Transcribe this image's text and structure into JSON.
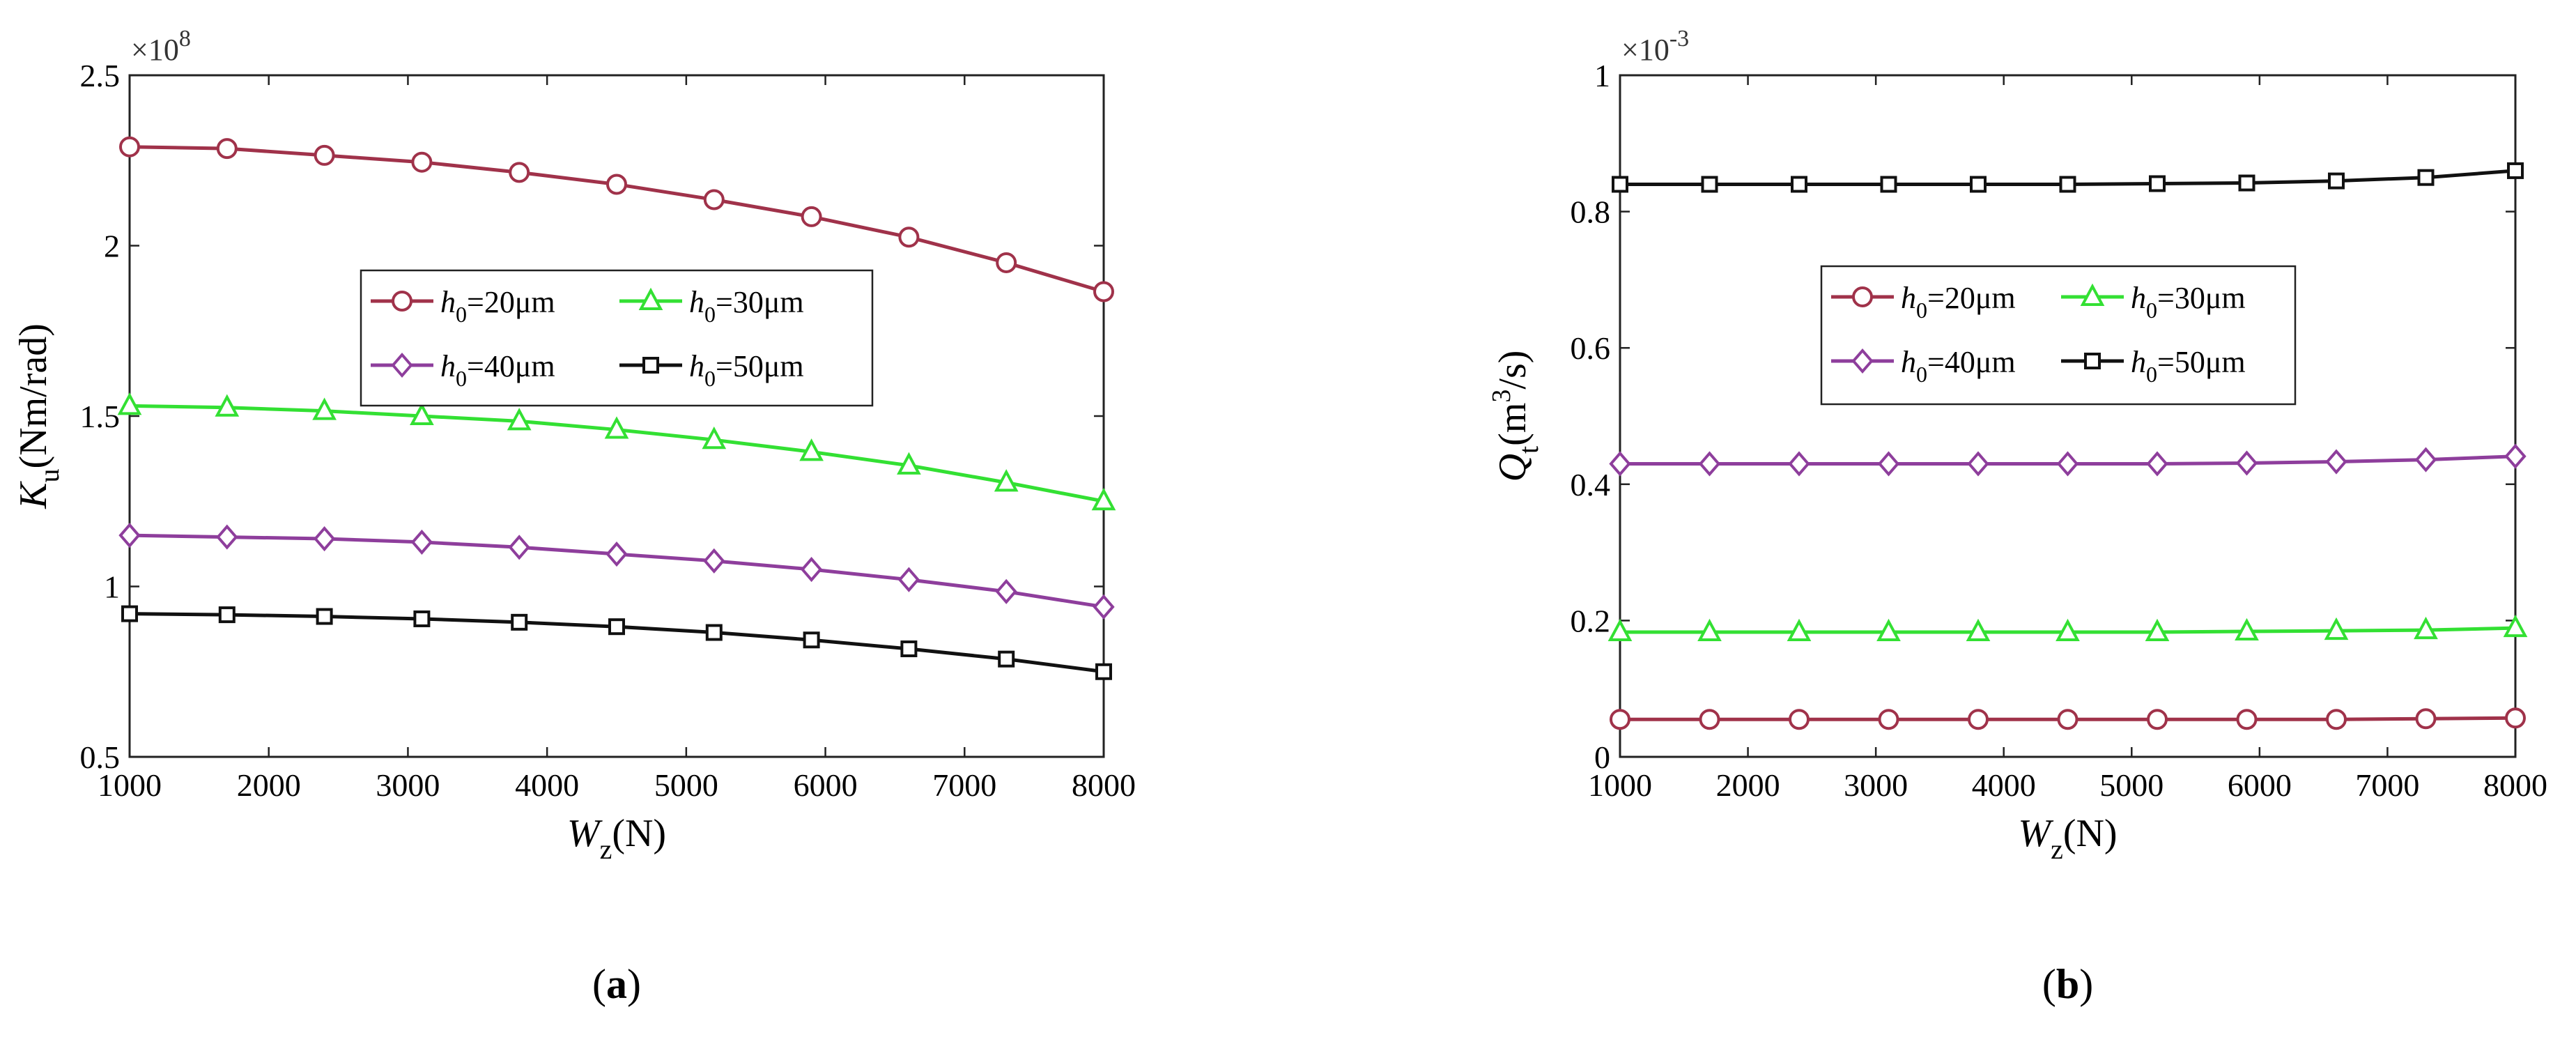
{
  "chart_data": [
    {
      "id": "a",
      "type": "line",
      "caption": "a",
      "x": [
        1000,
        1700,
        2400,
        3100,
        3800,
        4500,
        5200,
        5900,
        6600,
        7300,
        8000
      ],
      "xlim": [
        1000,
        8000
      ],
      "xticks": [
        1000,
        2000,
        3000,
        4000,
        5000,
        6000,
        7000,
        8000
      ],
      "xlabel": {
        "main": "W",
        "sub": "z",
        "unit": "(N)"
      },
      "ylim": [
        0.5,
        2.5
      ],
      "yticks": [
        0.5,
        1,
        1.5,
        2,
        2.5
      ],
      "ytick_labels": [
        "0.5",
        "1",
        "1.5",
        "2",
        "2.5"
      ],
      "ylabel": {
        "main": "K",
        "sub": "u",
        "unit": "(Nm/rad)"
      },
      "multiplier": {
        "base": "×10",
        "exp": "8"
      },
      "legend_position": "center-right",
      "series": [
        {
          "name": "20μm",
          "marker": "circle",
          "color": "#a0324a",
          "values": [
            2.29,
            2.285,
            2.265,
            2.245,
            2.215,
            2.18,
            2.135,
            2.085,
            2.025,
            1.95,
            1.865
          ]
        },
        {
          "name": "30μm",
          "marker": "triangle",
          "color": "#33e033",
          "values": [
            1.53,
            1.525,
            1.515,
            1.5,
            1.485,
            1.46,
            1.43,
            1.395,
            1.355,
            1.305,
            1.25
          ]
        },
        {
          "name": "40μm",
          "marker": "diamond",
          "color": "#8e3e9c",
          "values": [
            1.15,
            1.145,
            1.14,
            1.13,
            1.115,
            1.095,
            1.075,
            1.05,
            1.02,
            0.985,
            0.94
          ]
        },
        {
          "name": "50μm",
          "marker": "square",
          "color": "#111111",
          "values": [
            0.92,
            0.917,
            0.912,
            0.905,
            0.895,
            0.882,
            0.865,
            0.843,
            0.817,
            0.787,
            0.75
          ]
        }
      ]
    },
    {
      "id": "b",
      "type": "line",
      "caption": "b",
      "x": [
        1000,
        1700,
        2400,
        3100,
        3800,
        4500,
        5200,
        5900,
        6600,
        7300,
        8000
      ],
      "xlim": [
        1000,
        8000
      ],
      "xticks": [
        1000,
        2000,
        3000,
        4000,
        5000,
        6000,
        7000,
        8000
      ],
      "xlabel": {
        "main": "W",
        "sub": "z",
        "unit": "(N)"
      },
      "ylim": [
        0,
        1
      ],
      "yticks": [
        0,
        0.2,
        0.4,
        0.6,
        0.8,
        1
      ],
      "ytick_labels": [
        "0",
        "0.2",
        "0.4",
        "0.6",
        "0.8",
        "1"
      ],
      "ylabel": {
        "main": "Q",
        "sub": "t",
        "unit_pre": "(m",
        "sup": "3",
        "unit_post": "/s)"
      },
      "multiplier": {
        "base": "×10",
        "exp": "-3"
      },
      "legend_position": "top-center",
      "series": [
        {
          "name": "20μm",
          "marker": "circle",
          "color": "#a0324a",
          "values": [
            0.055,
            0.055,
            0.055,
            0.055,
            0.055,
            0.055,
            0.055,
            0.055,
            0.055,
            0.056,
            0.057
          ]
        },
        {
          "name": "30μm",
          "marker": "triangle",
          "color": "#33e033",
          "values": [
            0.183,
            0.183,
            0.183,
            0.183,
            0.183,
            0.183,
            0.183,
            0.184,
            0.185,
            0.186,
            0.189
          ]
        },
        {
          "name": "40μm",
          "marker": "diamond",
          "color": "#8e3e9c",
          "values": [
            0.43,
            0.43,
            0.43,
            0.43,
            0.43,
            0.43,
            0.43,
            0.431,
            0.433,
            0.436,
            0.441
          ]
        },
        {
          "name": "50μm",
          "marker": "square",
          "color": "#111111",
          "values": [
            0.84,
            0.84,
            0.84,
            0.84,
            0.84,
            0.84,
            0.841,
            0.842,
            0.845,
            0.85,
            0.86
          ]
        }
      ]
    }
  ],
  "legend_label": {
    "var": "h",
    "sub": "0",
    "eq": "="
  }
}
